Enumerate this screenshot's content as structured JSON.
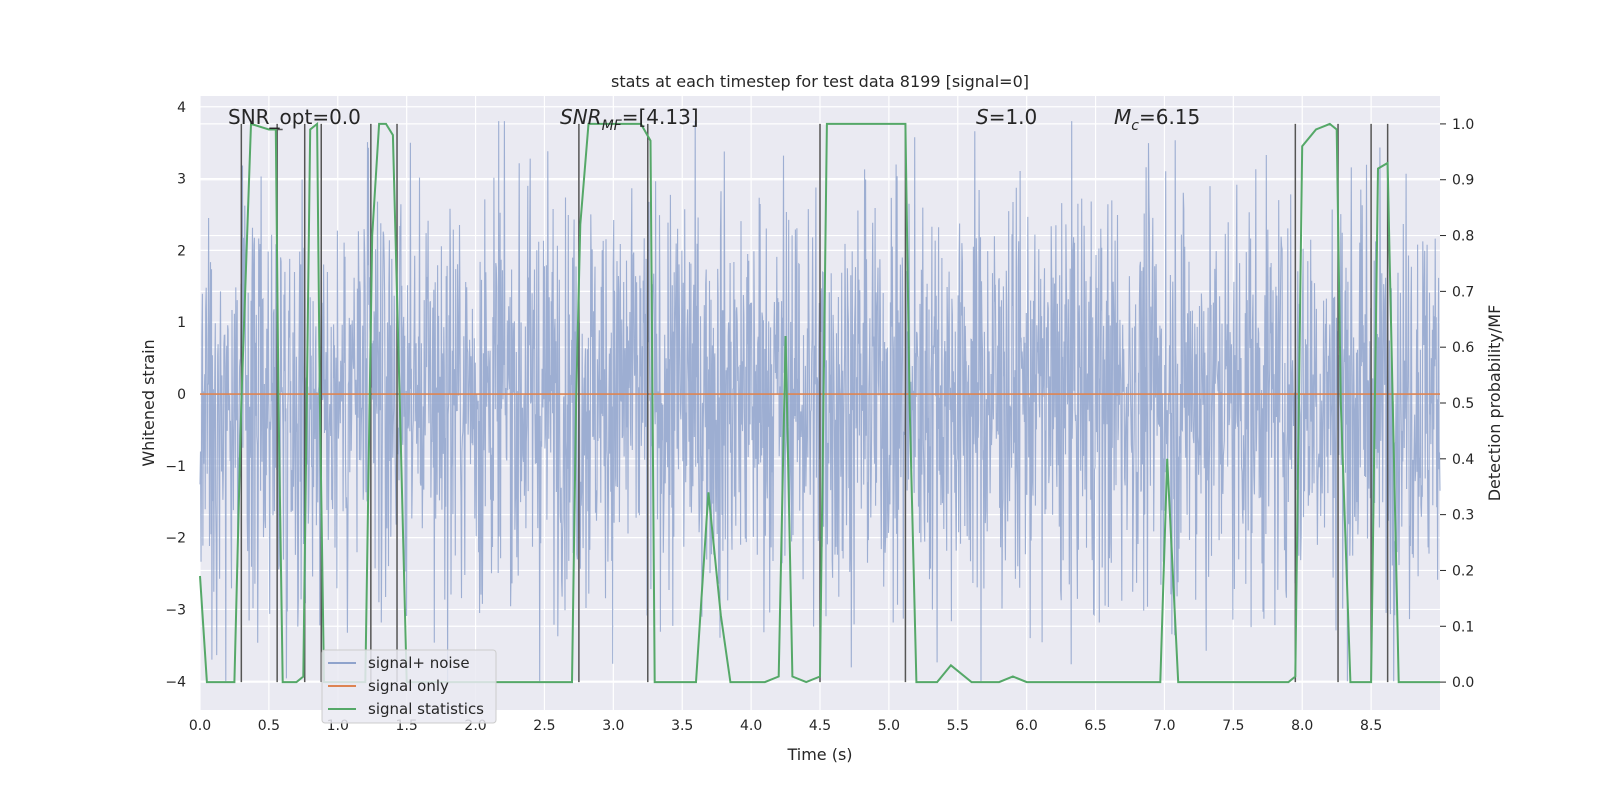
{
  "chart_data": {
    "type": "line",
    "title": "stats at each timestep for test data 8199 [signal=0]",
    "xlabel": "Time (s)",
    "ylabel_left": "Whitened strain",
    "ylabel_right": "Detection probability/MF",
    "xlim": [
      0.0,
      9.0
    ],
    "ylim_left": [
      -4.4,
      4.15
    ],
    "ylim_right": [
      -0.05,
      1.05
    ],
    "xticks": [
      0.0,
      0.5,
      1.0,
      1.5,
      2.0,
      2.5,
      3.0,
      3.5,
      4.0,
      4.5,
      5.0,
      5.5,
      6.0,
      6.5,
      7.0,
      7.5,
      8.0,
      8.5
    ],
    "xtick_labels": [
      "0.0",
      "0.5",
      "1.0",
      "1.5",
      "2.0",
      "2.5",
      "3.0",
      "3.5",
      "4.0",
      "4.5",
      "5.0",
      "5.5",
      "6.0",
      "6.5",
      "7.0",
      "7.5",
      "8.0",
      "8.5"
    ],
    "yticks_left": [
      -4,
      -3,
      -2,
      -1,
      0,
      1,
      2,
      3,
      4
    ],
    "ytick_labels_left": [
      "−4",
      "−3",
      "−2",
      "−1",
      "0",
      "1",
      "2",
      "3",
      "4"
    ],
    "yticks_right": [
      0.0,
      0.1,
      0.2,
      0.3,
      0.4,
      0.5,
      0.6,
      0.7,
      0.8,
      0.9,
      1.0
    ],
    "ytick_labels_right": [
      "0.0",
      "0.1",
      "0.2",
      "0.3",
      "0.4",
      "0.5",
      "0.6",
      "0.7",
      "0.8",
      "0.9",
      "1.0"
    ],
    "grid": true,
    "annotations": {
      "snr_opt": "SNR_opt=0.0",
      "snr_mf_name": "SNR",
      "snr_mf_sub": "MF",
      "snr_mf_value": "=[4.13]",
      "s_name": "S",
      "s_value": "=1.0",
      "mc_name": "M",
      "mc_sub": "c",
      "mc_value": "=6.15"
    },
    "legend": {
      "position": "lower-left",
      "entries": [
        "signal+ noise",
        "signal only",
        "signal statistics"
      ]
    },
    "series": [
      {
        "name": "signal+ noise",
        "color": "#8fa3cc",
        "description": "whitened strain noise, approx. range -4.0 to 3.8",
        "amplitude_typical": 1.5,
        "amplitude_max": 3.8
      },
      {
        "name": "signal only",
        "color": "#dd8452",
        "x": [
          0.0,
          9.0
        ],
        "y": [
          0.0,
          0.0
        ]
      },
      {
        "name": "signal statistics",
        "color": "#55a868",
        "x": [
          0.0,
          0.05,
          0.1,
          0.2,
          0.25,
          0.3,
          0.37,
          0.5,
          0.55,
          0.57,
          0.6,
          0.7,
          0.75,
          0.8,
          0.85,
          0.87,
          0.9,
          0.95,
          1.0,
          1.1,
          1.2,
          1.25,
          1.3,
          1.35,
          1.4,
          1.45,
          1.5,
          1.6,
          2.0,
          2.5,
          2.7,
          2.73,
          2.76,
          2.82,
          3.0,
          3.2,
          3.27,
          3.3,
          3.4,
          3.6,
          3.69,
          3.78,
          3.85,
          4.0,
          4.1,
          4.2,
          4.25,
          4.3,
          4.4,
          4.5,
          4.55,
          5.0,
          5.12,
          5.15,
          5.2,
          5.35,
          5.45,
          5.6,
          5.8,
          5.9,
          6.0,
          6.5,
          6.97,
          7.02,
          7.1,
          7.5,
          7.9,
          7.95,
          8.0,
          8.1,
          8.2,
          8.25,
          8.28,
          8.35,
          8.45,
          8.5,
          8.55,
          8.62,
          8.7,
          8.8,
          9.0
        ],
        "y": [
          0.19,
          0.0,
          0.0,
          0.0,
          0.0,
          0.5,
          1.0,
          0.99,
          0.99,
          0.5,
          0.0,
          0.0,
          0.01,
          0.99,
          1.0,
          0.5,
          0.0,
          0.0,
          0.0,
          0.0,
          0.0,
          0.8,
          1.0,
          1.0,
          0.98,
          0.5,
          0.0,
          0.0,
          0.0,
          0.0,
          0.0,
          0.5,
          0.82,
          1.0,
          1.0,
          1.0,
          0.97,
          0.0,
          0.0,
          0.0,
          0.34,
          0.12,
          0.0,
          0.0,
          0.0,
          0.01,
          0.62,
          0.01,
          0.0,
          0.01,
          1.0,
          1.0,
          1.0,
          0.5,
          0.0,
          0.0,
          0.03,
          0.0,
          0.0,
          0.01,
          0.0,
          0.0,
          0.0,
          0.4,
          0.0,
          0.0,
          0.0,
          0.01,
          0.96,
          0.99,
          1.0,
          0.99,
          0.5,
          0.0,
          0.0,
          0.0,
          0.92,
          0.93,
          0.0,
          0.0,
          0.0
        ]
      }
    ],
    "vertical_markers": {
      "color": "#555555",
      "x": [
        0.3,
        0.56,
        0.76,
        0.88,
        1.24,
        1.43,
        2.75,
        3.25,
        4.5,
        5.12,
        7.95,
        8.26,
        8.5,
        8.62
      ]
    },
    "bracket_hints": [
      {
        "x": 0.56,
        "half_width": 0.04
      },
      {
        "x": 5.12,
        "half_width": 0.0
      }
    ]
  },
  "colors": {
    "plot_bg": "#eaeaf2",
    "grid": "#ffffff",
    "noise": "#8fa3cc",
    "signal": "#dd8452",
    "stats": "#55a868",
    "vline": "#555555"
  }
}
